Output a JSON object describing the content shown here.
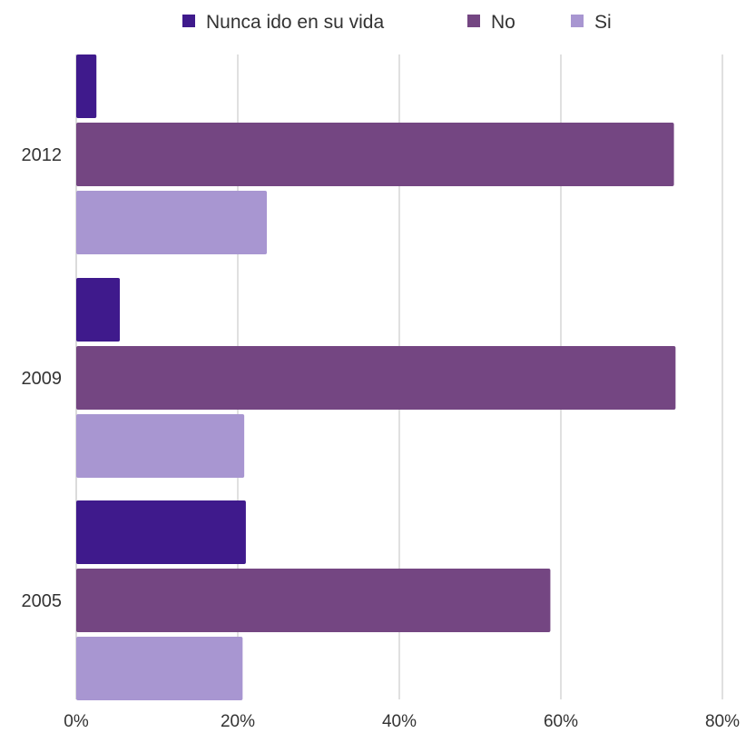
{
  "chart_data": {
    "type": "bar",
    "orientation": "horizontal",
    "categories": [
      "2012",
      "2009",
      "2005"
    ],
    "series": [
      {
        "name": "Nunca ido en su vida",
        "color": "#3f1a8c",
        "values": [
          2.5,
          5.4,
          21.0
        ]
      },
      {
        "name": "No",
        "color": "#744682",
        "values": [
          74.0,
          74.2,
          58.7
        ]
      },
      {
        "name": "Si",
        "color": "#a896d1",
        "values": [
          23.6,
          20.8,
          20.6
        ]
      }
    ],
    "xlim": [
      0,
      80
    ],
    "x_ticks": [
      0,
      20,
      40,
      60,
      80
    ],
    "x_tick_labels": [
      "0%",
      "20%",
      "40%",
      "60%",
      "80%"
    ],
    "grid": true,
    "legend_position": "top"
  }
}
